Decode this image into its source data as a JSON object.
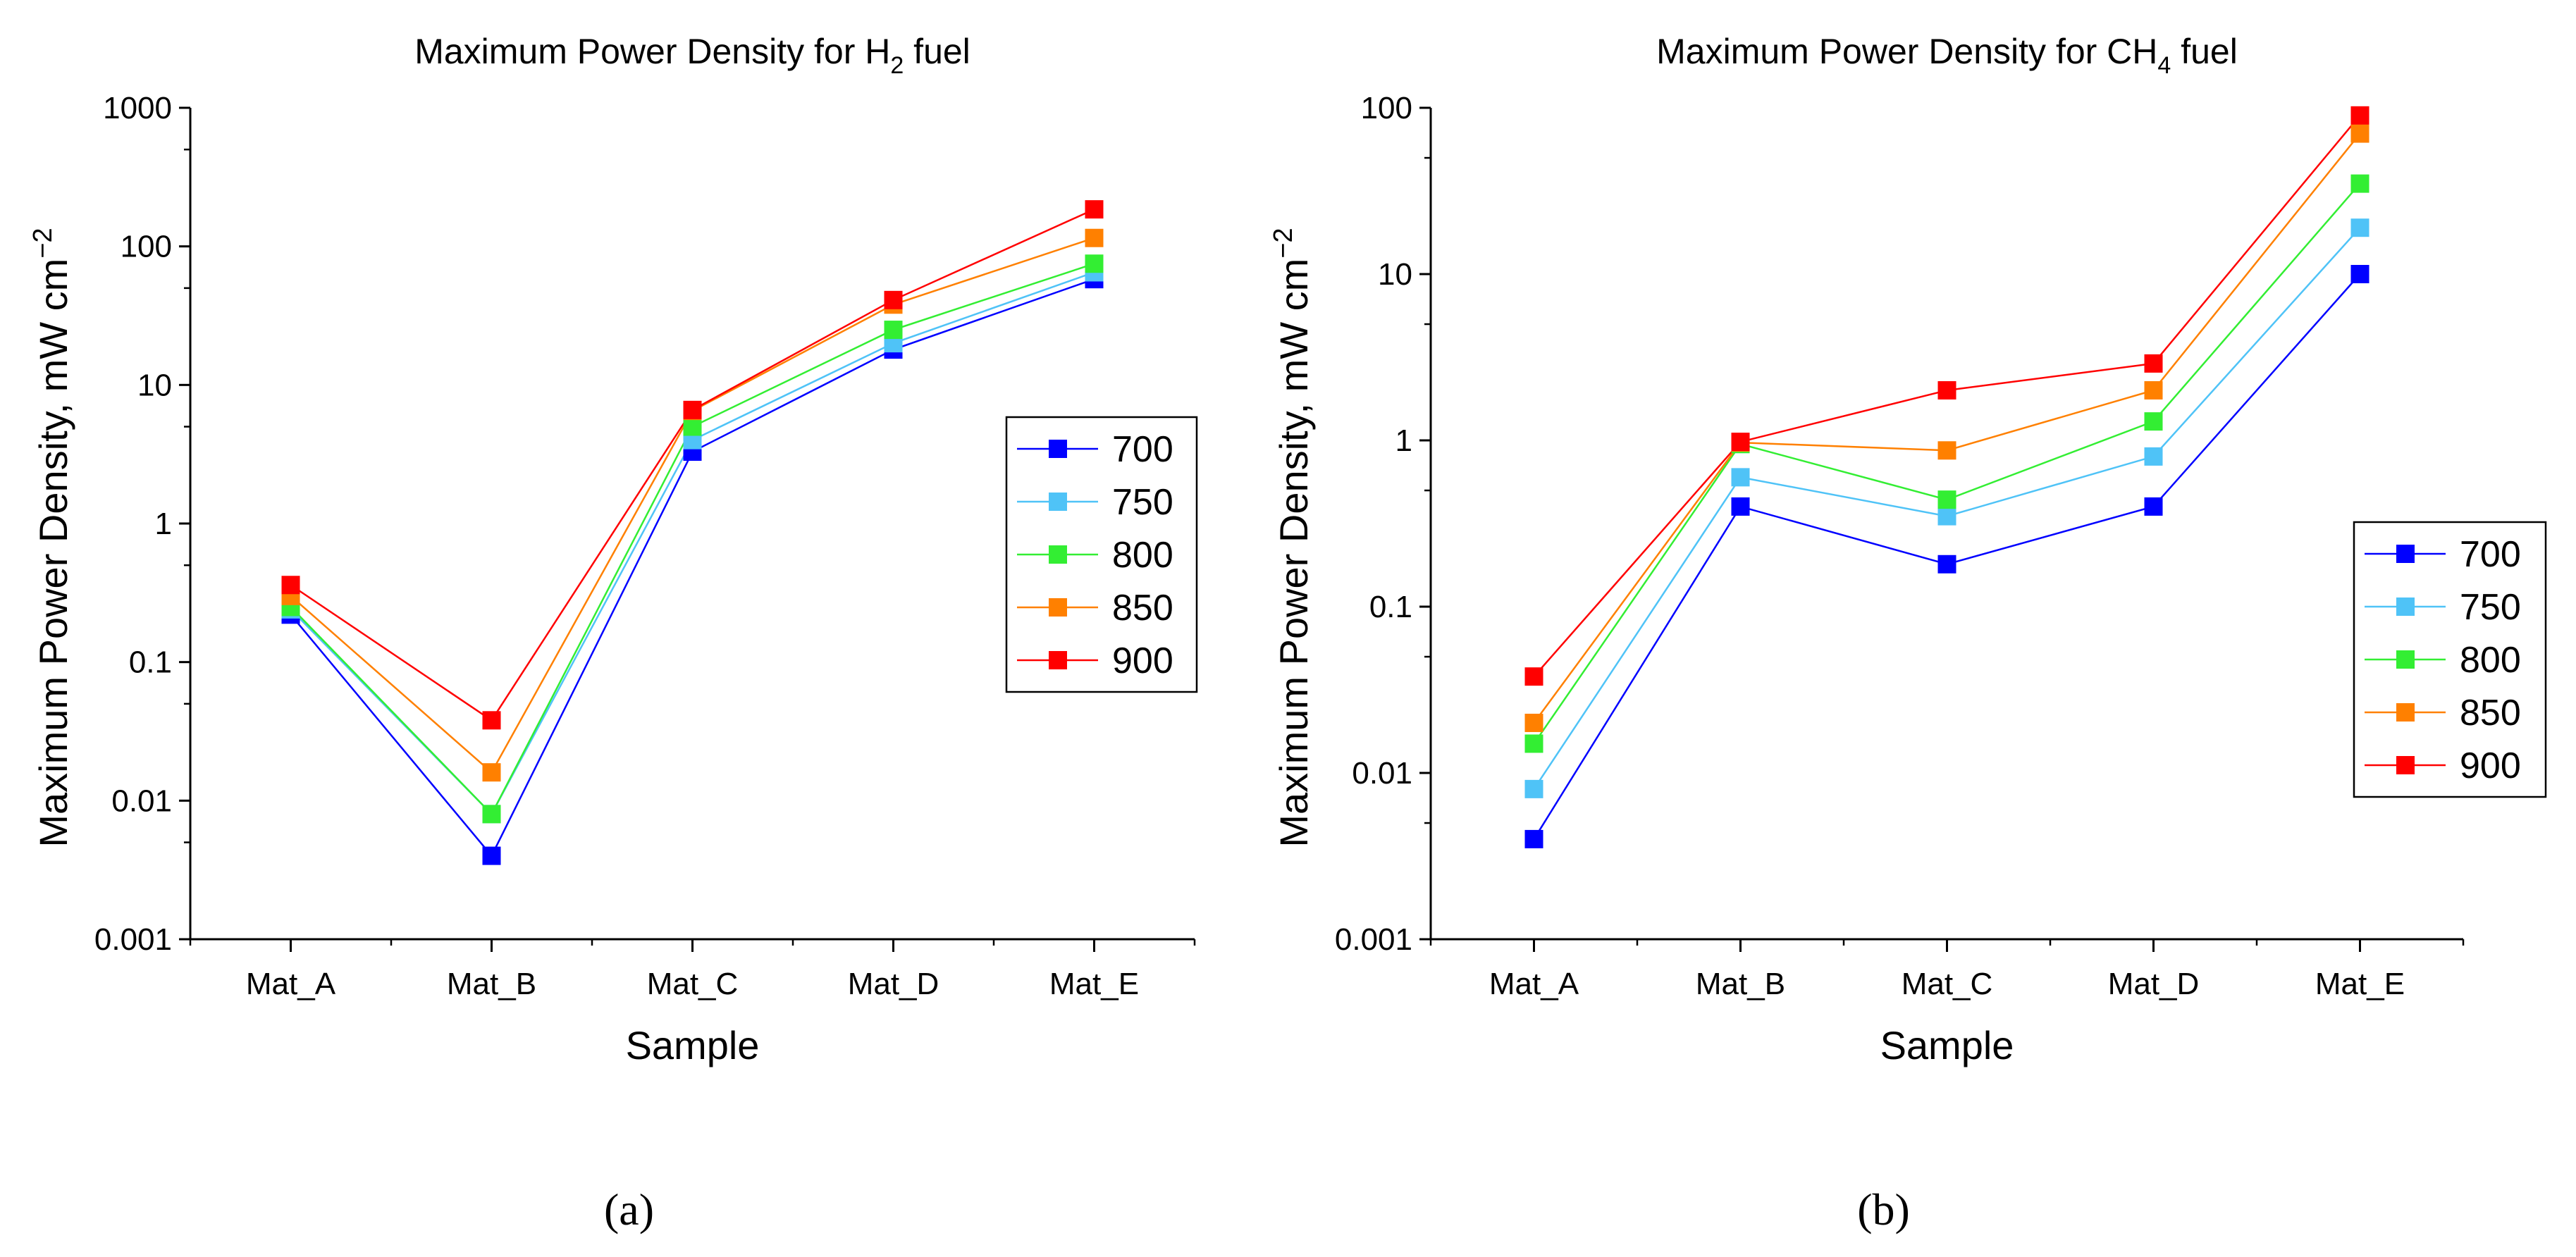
{
  "chart_data": [
    {
      "type": "line",
      "title": "Maximum Power Density for H",
      "title_sub": "2",
      "title_tail": " fuel",
      "xlabel": "Sample",
      "ylabel": "Maximum Power Density, mW cm",
      "ylabel_sup": "−2",
      "yscale": "log",
      "ylim": [
        0.001,
        1000
      ],
      "yticks": [
        "0.001",
        "0.01",
        "0.1",
        "1",
        "10",
        "100",
        "1000"
      ],
      "categories": [
        "Mat_A",
        "Mat_B",
        "Mat_C",
        "Mat_D",
        "Mat_E"
      ],
      "legend_position": "right",
      "panel_label": "(a)",
      "series": [
        {
          "name": "700",
          "color": "#0000ff",
          "values": [
            0.22,
            0.004,
            3.3,
            18,
            58
          ]
        },
        {
          "name": "750",
          "color": "#4fc3f7",
          "values": [
            0.24,
            0.008,
            4.0,
            20,
            65
          ]
        },
        {
          "name": "800",
          "color": "#33ee33",
          "values": [
            0.25,
            0.008,
            5.0,
            25,
            75
          ]
        },
        {
          "name": "850",
          "color": "#ff8000",
          "values": [
            0.3,
            0.016,
            6.5,
            38,
            115
          ]
        },
        {
          "name": "900",
          "color": "#ff0000",
          "values": [
            0.36,
            0.038,
            6.6,
            41,
            185
          ]
        }
      ]
    },
    {
      "type": "line",
      "title": "Maximum Power Density for CH",
      "title_sub": "4",
      "title_tail": " fuel",
      "xlabel": "Sample",
      "ylabel": "Maximum Power Density, mW cm",
      "ylabel_sup": "−2",
      "yscale": "log",
      "ylim": [
        0.001,
        100
      ],
      "yticks": [
        "0.001",
        "0.01",
        "0.1",
        "1",
        "10",
        "100"
      ],
      "categories": [
        "Mat_A",
        "Mat_B",
        "Mat_C",
        "Mat_D",
        "Mat_E"
      ],
      "legend_position": "right",
      "panel_label": "(b)",
      "series": [
        {
          "name": "700",
          "color": "#0000ff",
          "values": [
            0.004,
            0.4,
            0.18,
            0.4,
            10
          ]
        },
        {
          "name": "750",
          "color": "#4fc3f7",
          "values": [
            0.008,
            0.6,
            0.35,
            0.8,
            19
          ]
        },
        {
          "name": "800",
          "color": "#33ee33",
          "values": [
            0.015,
            0.95,
            0.44,
            1.3,
            35
          ]
        },
        {
          "name": "850",
          "color": "#ff8000",
          "values": [
            0.02,
            0.97,
            0.87,
            2.0,
            70
          ]
        },
        {
          "name": "900",
          "color": "#ff0000",
          "values": [
            0.038,
            0.98,
            2.0,
            2.9,
            90
          ]
        }
      ]
    }
  ]
}
